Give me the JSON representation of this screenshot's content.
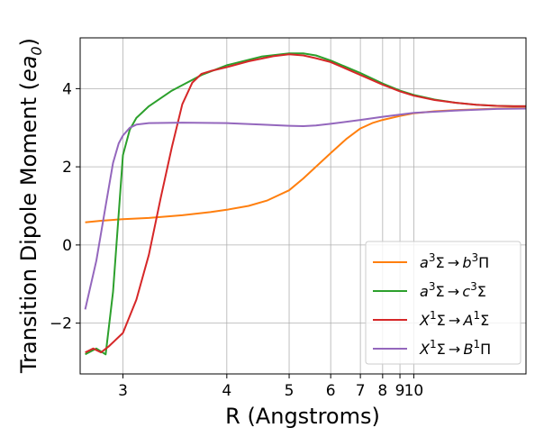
{
  "chart_data": {
    "type": "line",
    "title": "",
    "xlabel": "R (Angstroms)",
    "ylabel": "Transition Dipole Moment (ea0)",
    "xscale": "reciprocal",
    "xlim": [
      2.72,
      100
    ],
    "ylim": [
      -3.3,
      5.3
    ],
    "xticks": [
      3,
      4,
      5,
      6,
      7,
      8,
      9,
      10
    ],
    "yticks": [
      -2,
      0,
      2,
      4
    ],
    "grid": true,
    "legend_position": "lower-right",
    "series": [
      {
        "name": "a3Σ → b3Π",
        "color": "#ff7f0e",
        "x": [
          2.75,
          2.85,
          3.0,
          3.2,
          3.5,
          3.8,
          4.0,
          4.3,
          4.6,
          5.0,
          5.3,
          5.6,
          6.0,
          6.5,
          7.0,
          7.5,
          8.0,
          9.0,
          10.0,
          12.0,
          15.0,
          20.0,
          30.0,
          50.0,
          100.0
        ],
        "y": [
          0.58,
          0.62,
          0.66,
          0.69,
          0.76,
          0.84,
          0.9,
          1.0,
          1.14,
          1.4,
          1.7,
          2.0,
          2.35,
          2.72,
          2.98,
          3.12,
          3.2,
          3.3,
          3.37,
          3.42,
          3.45,
          3.47,
          3.49,
          3.5,
          3.5
        ]
      },
      {
        "name": "a3Σ → c3Σ",
        "color": "#2ca02c",
        "x": [
          2.75,
          2.82,
          2.88,
          2.93,
          2.97,
          3.0,
          3.05,
          3.1,
          3.2,
          3.4,
          3.7,
          4.0,
          4.5,
          5.0,
          5.3,
          5.6,
          6.0,
          7.0,
          8.0,
          9.0,
          10.0,
          12.0,
          15.0,
          20.0,
          30.0,
          50.0,
          100.0
        ],
        "y": [
          -2.8,
          -2.65,
          -2.8,
          -1.2,
          0.8,
          2.3,
          2.95,
          3.25,
          3.55,
          3.95,
          4.35,
          4.6,
          4.82,
          4.9,
          4.9,
          4.85,
          4.72,
          4.4,
          4.13,
          3.95,
          3.84,
          3.72,
          3.64,
          3.59,
          3.56,
          3.55,
          3.55
        ]
      },
      {
        "name": "X1Σ → A1Σ",
        "color": "#d62728",
        "x": [
          2.75,
          2.8,
          2.85,
          2.9,
          3.0,
          3.1,
          3.2,
          3.3,
          3.4,
          3.5,
          3.6,
          3.7,
          3.8,
          4.0,
          4.3,
          4.7,
          5.0,
          5.3,
          5.6,
          6.0,
          7.0,
          8.0,
          9.0,
          10.0,
          12.0,
          15.0,
          20.0,
          30.0,
          50.0,
          100.0
        ],
        "y": [
          -2.75,
          -2.65,
          -2.75,
          -2.6,
          -2.25,
          -1.4,
          -0.25,
          1.2,
          2.5,
          3.6,
          4.15,
          4.38,
          4.45,
          4.55,
          4.7,
          4.83,
          4.88,
          4.85,
          4.78,
          4.68,
          4.35,
          4.1,
          3.93,
          3.82,
          3.71,
          3.64,
          3.59,
          3.56,
          3.55,
          3.55
        ]
      },
      {
        "name": "X1Σ → B1Π",
        "color": "#9467bd",
        "x": [
          2.75,
          2.82,
          2.88,
          2.93,
          2.97,
          3.0,
          3.05,
          3.1,
          3.2,
          3.5,
          4.0,
          4.5,
          5.0,
          5.3,
          5.6,
          6.0,
          7.0,
          8.0,
          10.0,
          15.0,
          30.0,
          100.0
        ],
        "y": [
          -1.65,
          -0.4,
          1.0,
          2.1,
          2.6,
          2.8,
          3.0,
          3.08,
          3.12,
          3.13,
          3.12,
          3.08,
          3.05,
          3.04,
          3.06,
          3.1,
          3.2,
          3.28,
          3.38,
          3.44,
          3.48,
          3.49
        ]
      }
    ]
  }
}
